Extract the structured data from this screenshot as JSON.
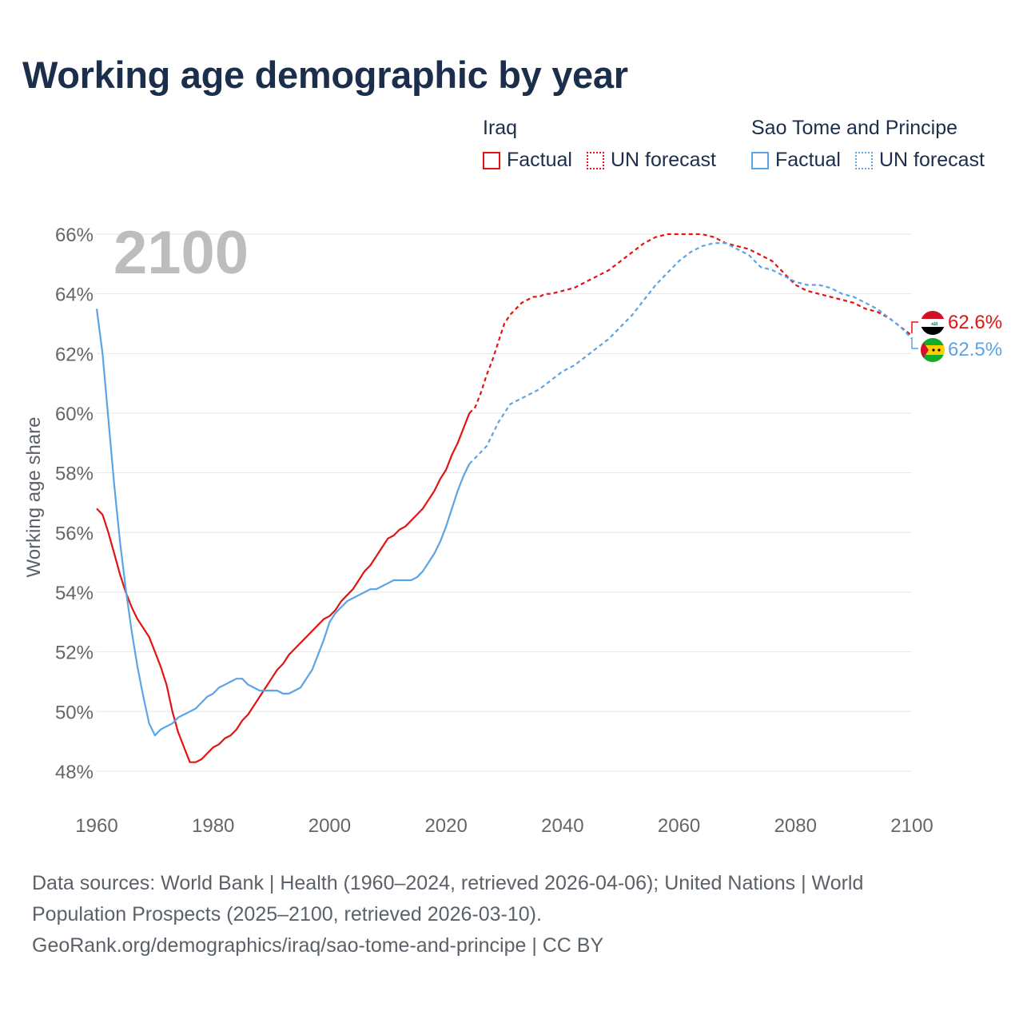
{
  "title": "Working age demographic by year",
  "year_watermark": "2100",
  "legend": {
    "iraq": {
      "country": "Iraq",
      "factual": "Factual",
      "forecast": "UN forecast",
      "color": "#e11313"
    },
    "stp": {
      "country": "Sao Tome and Principe",
      "factual": "Factual",
      "forecast": "UN forecast",
      "color": "#5ba4e6"
    }
  },
  "end_labels": {
    "iraq": "62.6%",
    "stp": "62.5%"
  },
  "footer": {
    "line1": "Data sources: World Bank | Health (1960–2024, retrieved 2026-04-06); United Nations | World",
    "line2": "Population Prospects (2025–2100, retrieved 2026-03-10).",
    "line3": "GeoRank.org/demographics/iraq/sao-tome-and-principe | CC BY"
  },
  "chart_data": {
    "type": "line",
    "title": "Working age demographic by year",
    "xlabel": "",
    "ylabel": "Working age share",
    "xlim": [
      1960,
      2100
    ],
    "ylim": [
      47.5,
      66.5
    ],
    "x_ticks": [
      1960,
      1980,
      2000,
      2020,
      2040,
      2060,
      2080,
      2100
    ],
    "x_tick_labels": [
      "1960",
      "1980",
      "2000",
      "2020",
      "2040",
      "2060",
      "2080",
      "2100"
    ],
    "y_ticks": [
      48,
      50,
      52,
      54,
      56,
      58,
      60,
      62,
      64,
      66
    ],
    "y_tick_labels": [
      "48%",
      "50%",
      "52%",
      "54%",
      "56%",
      "58%",
      "60%",
      "62%",
      "64%",
      "66%"
    ],
    "grid": true,
    "factual_end_year": 2024,
    "series": [
      {
        "name": "Iraq",
        "color": "#e11313",
        "end_label": "62.6%",
        "points": [
          [
            1960,
            56.8
          ],
          [
            1961,
            56.6
          ],
          [
            1962,
            56.0
          ],
          [
            1963,
            55.3
          ],
          [
            1964,
            54.6
          ],
          [
            1965,
            54.0
          ],
          [
            1966,
            53.5
          ],
          [
            1967,
            53.1
          ],
          [
            1968,
            52.8
          ],
          [
            1969,
            52.5
          ],
          [
            1970,
            52.0
          ],
          [
            1971,
            51.5
          ],
          [
            1972,
            50.9
          ],
          [
            1973,
            50.0
          ],
          [
            1974,
            49.3
          ],
          [
            1975,
            48.8
          ],
          [
            1976,
            48.3
          ],
          [
            1977,
            48.3
          ],
          [
            1978,
            48.4
          ],
          [
            1979,
            48.6
          ],
          [
            1980,
            48.8
          ],
          [
            1981,
            48.9
          ],
          [
            1982,
            49.1
          ],
          [
            1983,
            49.2
          ],
          [
            1984,
            49.4
          ],
          [
            1985,
            49.7
          ],
          [
            1986,
            49.9
          ],
          [
            1987,
            50.2
          ],
          [
            1988,
            50.5
          ],
          [
            1989,
            50.8
          ],
          [
            1990,
            51.1
          ],
          [
            1991,
            51.4
          ],
          [
            1992,
            51.6
          ],
          [
            1993,
            51.9
          ],
          [
            1994,
            52.1
          ],
          [
            1995,
            52.3
          ],
          [
            1996,
            52.5
          ],
          [
            1997,
            52.7
          ],
          [
            1998,
            52.9
          ],
          [
            1999,
            53.1
          ],
          [
            2000,
            53.2
          ],
          [
            2001,
            53.4
          ],
          [
            2002,
            53.7
          ],
          [
            2003,
            53.9
          ],
          [
            2004,
            54.1
          ],
          [
            2005,
            54.4
          ],
          [
            2006,
            54.7
          ],
          [
            2007,
            54.9
          ],
          [
            2008,
            55.2
          ],
          [
            2009,
            55.5
          ],
          [
            2010,
            55.8
          ],
          [
            2011,
            55.9
          ],
          [
            2012,
            56.1
          ],
          [
            2013,
            56.2
          ],
          [
            2014,
            56.4
          ],
          [
            2015,
            56.6
          ],
          [
            2016,
            56.8
          ],
          [
            2017,
            57.1
          ],
          [
            2018,
            57.4
          ],
          [
            2019,
            57.8
          ],
          [
            2020,
            58.1
          ],
          [
            2021,
            58.6
          ],
          [
            2022,
            59.0
          ],
          [
            2023,
            59.5
          ],
          [
            2024,
            60.0
          ],
          [
            2025,
            60.2
          ],
          [
            2026,
            60.7
          ],
          [
            2027,
            61.3
          ],
          [
            2028,
            61.8
          ],
          [
            2029,
            62.4
          ],
          [
            2030,
            63.0
          ],
          [
            2031,
            63.3
          ],
          [
            2032,
            63.5
          ],
          [
            2033,
            63.7
          ],
          [
            2034,
            63.8
          ],
          [
            2035,
            63.9
          ],
          [
            2036,
            63.9
          ],
          [
            2037,
            64.0
          ],
          [
            2038,
            64.0
          ],
          [
            2040,
            64.1
          ],
          [
            2042,
            64.2
          ],
          [
            2044,
            64.4
          ],
          [
            2046,
            64.6
          ],
          [
            2048,
            64.8
          ],
          [
            2050,
            65.1
          ],
          [
            2052,
            65.4
          ],
          [
            2054,
            65.7
          ],
          [
            2056,
            65.9
          ],
          [
            2058,
            66.0
          ],
          [
            2060,
            66.0
          ],
          [
            2062,
            66.0
          ],
          [
            2064,
            66.0
          ],
          [
            2066,
            65.9
          ],
          [
            2068,
            65.7
          ],
          [
            2070,
            65.6
          ],
          [
            2072,
            65.5
          ],
          [
            2074,
            65.3
          ],
          [
            2076,
            65.1
          ],
          [
            2078,
            64.7
          ],
          [
            2080,
            64.3
          ],
          [
            2082,
            64.1
          ],
          [
            2084,
            64.0
          ],
          [
            2086,
            63.9
          ],
          [
            2088,
            63.8
          ],
          [
            2090,
            63.7
          ],
          [
            2092,
            63.5
          ],
          [
            2094,
            63.4
          ],
          [
            2096,
            63.2
          ],
          [
            2098,
            62.9
          ],
          [
            2100,
            62.6
          ]
        ]
      },
      {
        "name": "Sao Tome and Principe",
        "color": "#5ba4e6",
        "end_label": "62.5%",
        "points": [
          [
            1960,
            63.5
          ],
          [
            1961,
            62.0
          ],
          [
            1962,
            59.8
          ],
          [
            1963,
            57.6
          ],
          [
            1964,
            55.7
          ],
          [
            1965,
            54.1
          ],
          [
            1966,
            52.7
          ],
          [
            1967,
            51.5
          ],
          [
            1968,
            50.5
          ],
          [
            1969,
            49.6
          ],
          [
            1970,
            49.2
          ],
          [
            1971,
            49.4
          ],
          [
            1972,
            49.5
          ],
          [
            1973,
            49.6
          ],
          [
            1974,
            49.8
          ],
          [
            1975,
            49.9
          ],
          [
            1976,
            50.0
          ],
          [
            1977,
            50.1
          ],
          [
            1978,
            50.3
          ],
          [
            1979,
            50.5
          ],
          [
            1980,
            50.6
          ],
          [
            1981,
            50.8
          ],
          [
            1982,
            50.9
          ],
          [
            1983,
            51.0
          ],
          [
            1984,
            51.1
          ],
          [
            1985,
            51.1
          ],
          [
            1986,
            50.9
          ],
          [
            1987,
            50.8
          ],
          [
            1988,
            50.7
          ],
          [
            1989,
            50.7
          ],
          [
            1990,
            50.7
          ],
          [
            1991,
            50.7
          ],
          [
            1992,
            50.6
          ],
          [
            1993,
            50.6
          ],
          [
            1994,
            50.7
          ],
          [
            1995,
            50.8
          ],
          [
            1996,
            51.1
          ],
          [
            1997,
            51.4
          ],
          [
            1998,
            51.9
          ],
          [
            1999,
            52.4
          ],
          [
            2000,
            53.0
          ],
          [
            2001,
            53.3
          ],
          [
            2002,
            53.5
          ],
          [
            2003,
            53.7
          ],
          [
            2004,
            53.8
          ],
          [
            2005,
            53.9
          ],
          [
            2006,
            54.0
          ],
          [
            2007,
            54.1
          ],
          [
            2008,
            54.1
          ],
          [
            2009,
            54.2
          ],
          [
            2010,
            54.3
          ],
          [
            2011,
            54.4
          ],
          [
            2012,
            54.4
          ],
          [
            2013,
            54.4
          ],
          [
            2014,
            54.4
          ],
          [
            2015,
            54.5
          ],
          [
            2016,
            54.7
          ],
          [
            2017,
            55.0
          ],
          [
            2018,
            55.3
          ],
          [
            2019,
            55.7
          ],
          [
            2020,
            56.2
          ],
          [
            2021,
            56.8
          ],
          [
            2022,
            57.4
          ],
          [
            2023,
            57.9
          ],
          [
            2024,
            58.3
          ],
          [
            2025,
            58.5
          ],
          [
            2026,
            58.7
          ],
          [
            2027,
            58.9
          ],
          [
            2028,
            59.3
          ],
          [
            2029,
            59.7
          ],
          [
            2030,
            60.0
          ],
          [
            2031,
            60.3
          ],
          [
            2032,
            60.4
          ],
          [
            2034,
            60.6
          ],
          [
            2036,
            60.8
          ],
          [
            2038,
            61.1
          ],
          [
            2040,
            61.4
          ],
          [
            2042,
            61.6
          ],
          [
            2044,
            61.9
          ],
          [
            2046,
            62.2
          ],
          [
            2048,
            62.5
          ],
          [
            2050,
            62.9
          ],
          [
            2052,
            63.3
          ],
          [
            2054,
            63.8
          ],
          [
            2056,
            64.3
          ],
          [
            2058,
            64.7
          ],
          [
            2060,
            65.1
          ],
          [
            2062,
            65.4
          ],
          [
            2064,
            65.6
          ],
          [
            2066,
            65.7
          ],
          [
            2068,
            65.7
          ],
          [
            2070,
            65.5
          ],
          [
            2072,
            65.3
          ],
          [
            2074,
            64.9
          ],
          [
            2076,
            64.8
          ],
          [
            2078,
            64.6
          ],
          [
            2080,
            64.4
          ],
          [
            2082,
            64.3
          ],
          [
            2084,
            64.3
          ],
          [
            2086,
            64.2
          ],
          [
            2088,
            64.0
          ],
          [
            2090,
            63.9
          ],
          [
            2092,
            63.7
          ],
          [
            2094,
            63.5
          ],
          [
            2096,
            63.2
          ],
          [
            2098,
            62.9
          ],
          [
            2100,
            62.5
          ]
        ]
      }
    ]
  }
}
